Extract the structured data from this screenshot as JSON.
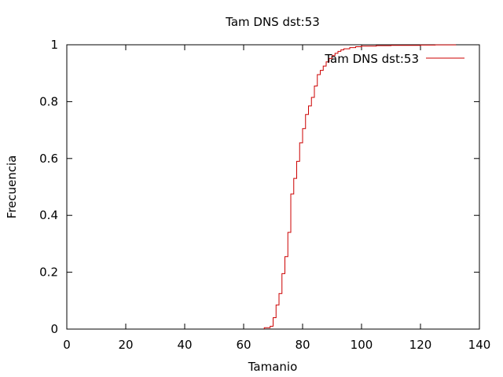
{
  "chart_data": {
    "type": "line",
    "title": "Tam DNS dst:53",
    "xlabel": "Tamanio",
    "ylabel": "Frecuencia",
    "xlim": [
      0,
      140
    ],
    "ylim": [
      0,
      1
    ],
    "x_ticks": [
      "0",
      "20",
      "40",
      "60",
      "80",
      "100",
      "120",
      "140"
    ],
    "y_ticks": [
      "0",
      "0.2",
      "0.4",
      "0.6",
      "0.8",
      "1"
    ],
    "grid": false,
    "legend_position": "top-right",
    "series": [
      {
        "name": "Tam DNS dst:53",
        "color": "#cc0000",
        "step": true,
        "points": [
          [
            67,
            0.0
          ],
          [
            67,
            0.005
          ],
          [
            69,
            0.01
          ],
          [
            70,
            0.04
          ],
          [
            71,
            0.085
          ],
          [
            72,
            0.125
          ],
          [
            73,
            0.195
          ],
          [
            74,
            0.255
          ],
          [
            75,
            0.34
          ],
          [
            76,
            0.475
          ],
          [
            77,
            0.53
          ],
          [
            78,
            0.59
          ],
          [
            79,
            0.655
          ],
          [
            80,
            0.705
          ],
          [
            81,
            0.755
          ],
          [
            82,
            0.785
          ],
          [
            83,
            0.815
          ],
          [
            84,
            0.855
          ],
          [
            85,
            0.895
          ],
          [
            86,
            0.91
          ],
          [
            87,
            0.925
          ],
          [
            88,
            0.94
          ],
          [
            89,
            0.952
          ],
          [
            90,
            0.962
          ],
          [
            91,
            0.97
          ],
          [
            92,
            0.977
          ],
          [
            93,
            0.982
          ],
          [
            94,
            0.986
          ],
          [
            96,
            0.99
          ],
          [
            98,
            0.993
          ],
          [
            100,
            0.995
          ],
          [
            105,
            0.997
          ],
          [
            110,
            0.998
          ],
          [
            120,
            0.999
          ],
          [
            125,
            0.9995
          ],
          [
            132,
            1.0
          ]
        ]
      }
    ]
  }
}
